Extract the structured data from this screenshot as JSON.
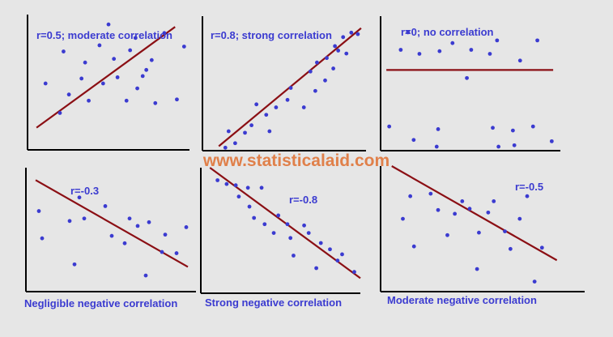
{
  "watermark": "www.statisticalaid.com",
  "colors": {
    "point": "#3b3bd0",
    "line": "#8b0f14",
    "label": "#3b3bd0",
    "axis": "#000000",
    "watermark": "#e0804a",
    "background": "#e6e6e6"
  },
  "chart_data": [
    {
      "type": "scatter",
      "label": "r=0.5; moderate correlation",
      "caption": "",
      "points": [
        [
          1,
          5.4
        ],
        [
          1.8,
          3
        ],
        [
          2,
          8
        ],
        [
          2.3,
          4.5
        ],
        [
          3,
          5.8
        ],
        [
          3.2,
          7.1
        ],
        [
          3.4,
          4
        ],
        [
          4,
          8.5
        ],
        [
          4.2,
          5.4
        ],
        [
          4.5,
          10.2
        ],
        [
          4.8,
          7.4
        ],
        [
          5,
          5.9
        ],
        [
          5.5,
          4
        ],
        [
          5.7,
          8.1
        ],
        [
          6,
          9.1
        ],
        [
          6.1,
          5
        ],
        [
          6.4,
          6
        ],
        [
          6.6,
          6.5
        ],
        [
          6.9,
          7.3
        ],
        [
          7.1,
          3.8
        ],
        [
          7.6,
          9.5
        ],
        [
          8.3,
          4.1
        ],
        [
          8.7,
          8.4
        ]
      ],
      "line": [
        [
          0.5,
          1.8
        ],
        [
          8.2,
          10
        ]
      ]
    },
    {
      "type": "scatter",
      "label": "r=0.8; strong correlation",
      "caption": "",
      "points": [
        [
          1.4,
          0.2
        ],
        [
          1.6,
          1.3
        ],
        [
          2,
          0.5
        ],
        [
          2.6,
          1.2
        ],
        [
          3,
          1.7
        ],
        [
          3.3,
          3.1
        ],
        [
          3.9,
          2.4
        ],
        [
          4.1,
          1.3
        ],
        [
          4.5,
          2.9
        ],
        [
          5.2,
          3.4
        ],
        [
          5.4,
          4.2
        ],
        [
          6.2,
          2.9
        ],
        [
          6.6,
          5.3
        ],
        [
          6.9,
          4
        ],
        [
          7,
          5.9
        ],
        [
          7.5,
          4.7
        ],
        [
          7.6,
          6.2
        ],
        [
          8,
          5.5
        ],
        [
          8.1,
          7
        ],
        [
          8.3,
          6.7
        ],
        [
          8.6,
          7.6
        ],
        [
          8.8,
          6.5
        ],
        [
          9.1,
          7.9
        ],
        [
          9.5,
          7.8
        ]
      ],
      "line": [
        [
          1,
          0.3
        ],
        [
          9.7,
          8.2
        ]
      ]
    },
    {
      "type": "scatter",
      "label": "r=0",
      "label_suffix": "; no correlation",
      "caption": "",
      "points": [
        [
          0.6,
          1.8
        ],
        [
          1.4,
          7.5
        ],
        [
          1.9,
          8.8
        ],
        [
          2.3,
          0.8
        ],
        [
          2.7,
          7.2
        ],
        [
          3.9,
          0.3
        ],
        [
          4,
          1.6
        ],
        [
          4.1,
          7.4
        ],
        [
          5,
          8
        ],
        [
          6,
          5.4
        ],
        [
          6.3,
          7.5
        ],
        [
          7.6,
          7.2
        ],
        [
          7.8,
          1.7
        ],
        [
          8.1,
          8.2
        ],
        [
          8.2,
          0.3
        ],
        [
          9.2,
          1.5
        ],
        [
          9.3,
          0.4
        ],
        [
          9.7,
          6.7
        ],
        [
          10.6,
          1.8
        ],
        [
          10.9,
          8.2
        ],
        [
          11.9,
          0.7
        ]
      ],
      "line": [
        [
          0.4,
          6
        ],
        [
          12,
          6
        ]
      ]
    },
    {
      "type": "scatter",
      "label": "r=-0.3",
      "caption": "Negligible negative correlation",
      "points": [
        [
          0.8,
          6.5
        ],
        [
          1,
          4.3
        ],
        [
          2.7,
          5.7
        ],
        [
          3,
          2.2
        ],
        [
          3.3,
          7.6
        ],
        [
          3.6,
          5.9
        ],
        [
          4.9,
          6.9
        ],
        [
          5.3,
          4.5
        ],
        [
          6.1,
          3.9
        ],
        [
          6.4,
          5.9
        ],
        [
          6.9,
          5.3
        ],
        [
          7.4,
          1.3
        ],
        [
          7.6,
          5.6
        ],
        [
          8.4,
          3.2
        ],
        [
          8.6,
          4.6
        ],
        [
          9.3,
          3.1
        ],
        [
          9.9,
          5.2
        ]
      ],
      "line": [
        [
          0.6,
          9
        ],
        [
          10,
          2
        ]
      ]
    },
    {
      "type": "scatter",
      "label": "r=-0.8",
      "caption": "Strong negative correlation",
      "points": [
        [
          1.1,
          9
        ],
        [
          1.7,
          8.7
        ],
        [
          2.3,
          8.6
        ],
        [
          2.5,
          7.7
        ],
        [
          3.1,
          8.4
        ],
        [
          3.2,
          6.9
        ],
        [
          3.5,
          6
        ],
        [
          4,
          8.4
        ],
        [
          4.2,
          5.5
        ],
        [
          4.8,
          4.8
        ],
        [
          5.1,
          6.2
        ],
        [
          5.7,
          5.5
        ],
        [
          5.9,
          4.4
        ],
        [
          6.1,
          3
        ],
        [
          6.8,
          5.4
        ],
        [
          7.1,
          4.8
        ],
        [
          7.6,
          2
        ],
        [
          7.9,
          4
        ],
        [
          8.5,
          3.5
        ],
        [
          9,
          2.6
        ],
        [
          9.3,
          3.1
        ],
        [
          10.1,
          1.7
        ]
      ],
      "line": [
        [
          0.6,
          10
        ],
        [
          10.5,
          1.2
        ]
      ]
    },
    {
      "type": "scatter",
      "label": "r=-0.5",
      "caption": "Moderate negative correlation",
      "points": [
        [
          1.2,
          5.8
        ],
        [
          1.6,
          7.6
        ],
        [
          1.8,
          3.6
        ],
        [
          2.7,
          7.8
        ],
        [
          3.1,
          6.5
        ],
        [
          3.6,
          4.5
        ],
        [
          4,
          6.2
        ],
        [
          4.4,
          7.2
        ],
        [
          4.8,
          6.6
        ],
        [
          5.2,
          1.8
        ],
        [
          5.3,
          4.7
        ],
        [
          5.8,
          6.3
        ],
        [
          6.1,
          7.2
        ],
        [
          6.7,
          4.8
        ],
        [
          7,
          3.4
        ],
        [
          7.5,
          5.8
        ],
        [
          7.9,
          7.6
        ],
        [
          8.3,
          0.8
        ],
        [
          8.7,
          3.5
        ]
      ],
      "line": [
        [
          0.6,
          10
        ],
        [
          9.5,
          2.5
        ]
      ]
    }
  ]
}
